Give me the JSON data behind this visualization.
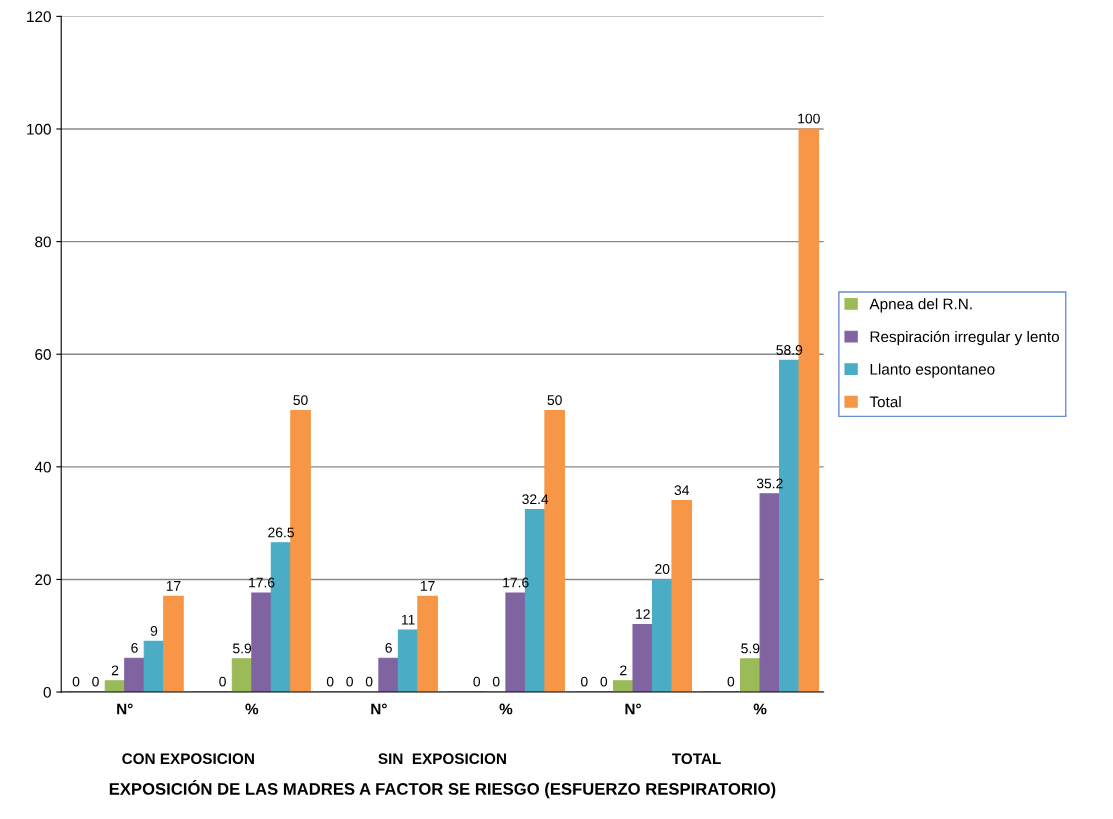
{
  "chart_data": {
    "type": "bar",
    "xlabel": "EXPOSICIÓN DE LAS MADRES A FACTOR SE RIESGO (ESFUERZO RESPIRATORIO)",
    "categories": [
      "N°",
      "%",
      "N°",
      "%",
      "N°",
      "%"
    ],
    "annotations": [
      "CON EXPOSICION",
      "SIN  EXPOSICION",
      "TOTAL"
    ],
    "series": [
      {
        "color": "#4f81bd",
        "values": [
          0,
          0,
          0,
          0,
          0,
          0
        ],
        "value_labels": [
          "0",
          null,
          "0",
          null,
          "0",
          null
        ]
      },
      {
        "color": "#c0504d",
        "values": [
          0,
          0,
          0,
          0,
          0,
          0
        ],
        "value_labels": [
          "0",
          "0",
          "0",
          "0",
          "0",
          "0"
        ]
      },
      {
        "name": "Apnea del R.N.",
        "color": "#9bbb59",
        "values": [
          2,
          5.9,
          0,
          0,
          2,
          5.9
        ],
        "value_labels": [
          "2",
          "5.9",
          "0",
          "0",
          "2",
          "5.9"
        ]
      },
      {
        "name": "Respiración irregular y lento",
        "color": "#8064a2",
        "values": [
          6,
          17.6,
          6,
          17.6,
          12,
          35.2
        ],
        "value_labels": [
          "6",
          "17.6",
          "6",
          "17.6",
          "12",
          "35.2"
        ]
      },
      {
        "name": "Llanto espontaneo",
        "color": "#4bacc6",
        "values": [
          9,
          26.5,
          11,
          32.4,
          20,
          58.9
        ],
        "value_labels": [
          "9",
          "26.5",
          "11",
          "32.4",
          "20",
          "58.9"
        ]
      },
      {
        "name": "Total",
        "color": "#f79646",
        "values": [
          17,
          50,
          17,
          50,
          34,
          100
        ],
        "value_labels": [
          "17",
          "50",
          "17",
          "50",
          "34",
          "100"
        ]
      }
    ],
    "ylim": [
      0,
      120
    ],
    "yticks": [
      0,
      20,
      40,
      60,
      80,
      100,
      120
    ],
    "grid": "y",
    "legend": "right"
  }
}
